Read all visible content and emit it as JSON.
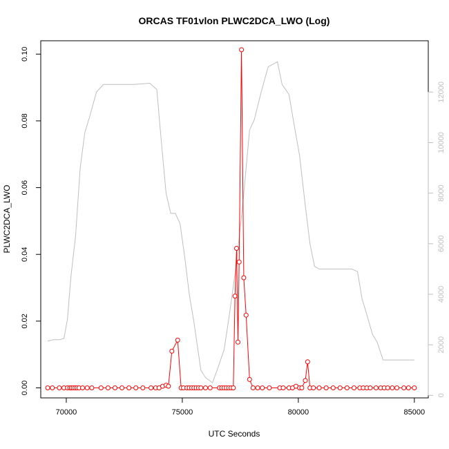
{
  "chart_data": {
    "type": "line",
    "title": "ORCAS TF01vlon PLWC2DCA_LWO (Log)",
    "xlabel": "UTC Seconds",
    "ylabel": "PLWC2DCA_LWO",
    "xlim": [
      68900,
      85600
    ],
    "ylim": [
      -0.003,
      0.104
    ],
    "y2lim": [
      -100,
      14030
    ],
    "x_ticks": [
      70000,
      75000,
      80000,
      85000
    ],
    "y_ticks": [
      0.0,
      0.02,
      0.04,
      0.06,
      0.08,
      0.1
    ],
    "y_tick_labels": [
      "0.00",
      "0.02",
      "0.04",
      "0.06",
      "0.08",
      "0.10"
    ],
    "y2_ticks": [
      0,
      2000,
      4000,
      6000,
      8000,
      10000,
      12000
    ],
    "grid": false,
    "legend": "none",
    "series": [
      {
        "color": "#ff0000",
        "axis": "left",
        "style": "line-with-points",
        "points": [
          [
            69200,
            0.0
          ],
          [
            69400,
            0.0
          ],
          [
            69700,
            0.0
          ],
          [
            69900,
            0.0
          ],
          [
            70050,
            0.0
          ],
          [
            70150,
            0.0
          ],
          [
            70220,
            0.0
          ],
          [
            70300,
            0.0
          ],
          [
            70380,
            0.0
          ],
          [
            70460,
            0.0
          ],
          [
            70550,
            0.0
          ],
          [
            70700,
            0.0
          ],
          [
            70900,
            0.0
          ],
          [
            71100,
            0.0
          ],
          [
            71500,
            0.0
          ],
          [
            71800,
            0.0
          ],
          [
            72100,
            0.0
          ],
          [
            72400,
            0.0
          ],
          [
            72700,
            0.0
          ],
          [
            73000,
            0.0
          ],
          [
            73300,
            0.0
          ],
          [
            73650,
            0.0
          ],
          [
            73850,
            0.0
          ],
          [
            74000,
            0.0
          ],
          [
            74150,
            0.0005
          ],
          [
            74300,
            0.0008
          ],
          [
            74400,
            0.0005
          ],
          [
            74550,
            0.011
          ],
          [
            74800,
            0.0143
          ],
          [
            74950,
            0.0
          ],
          [
            75050,
            0.0
          ],
          [
            75200,
            0.0
          ],
          [
            75300,
            0.0
          ],
          [
            75400,
            0.0
          ],
          [
            75500,
            0.0
          ],
          [
            75600,
            0.0
          ],
          [
            75700,
            0.0
          ],
          [
            75800,
            0.0
          ],
          [
            76000,
            0.0
          ],
          [
            76200,
            0.0
          ],
          [
            76600,
            0.0
          ],
          [
            76700,
            0.0
          ],
          [
            76800,
            0.0
          ],
          [
            76900,
            0.0
          ],
          [
            77000,
            0.0
          ],
          [
            77100,
            0.0
          ],
          [
            77200,
            0.0
          ],
          [
            77270,
            0.0275
          ],
          [
            77340,
            0.0418
          ],
          [
            77400,
            0.0137
          ],
          [
            77450,
            0.0377
          ],
          [
            77550,
            0.1013
          ],
          [
            77650,
            0.033
          ],
          [
            77750,
            0.0218
          ],
          [
            77900,
            0.0025
          ],
          [
            78050,
            0.0
          ],
          [
            78250,
            0.0
          ],
          [
            78450,
            0.0
          ],
          [
            78750,
            0.0
          ],
          [
            79200,
            0.0
          ],
          [
            79350,
            0.0
          ],
          [
            79600,
            0.0
          ],
          [
            79750,
            0.0
          ],
          [
            79900,
            0.0005
          ],
          [
            80050,
            0.0
          ],
          [
            80150,
            0.0
          ],
          [
            80300,
            0.0022
          ],
          [
            80400,
            0.0078
          ],
          [
            80500,
            0.0
          ],
          [
            80650,
            0.0
          ],
          [
            80900,
            0.0
          ],
          [
            81200,
            0.0
          ],
          [
            81500,
            0.0
          ],
          [
            81800,
            0.0
          ],
          [
            82100,
            0.0
          ],
          [
            82400,
            0.0
          ],
          [
            82650,
            0.0
          ],
          [
            82800,
            0.0
          ],
          [
            82950,
            0.0
          ],
          [
            83100,
            0.0
          ],
          [
            83350,
            0.0
          ],
          [
            83550,
            0.0
          ],
          [
            83700,
            0.0
          ],
          [
            83850,
            0.0
          ],
          [
            84050,
            0.0
          ],
          [
            84250,
            0.0
          ],
          [
            84550,
            0.0
          ],
          [
            84750,
            0.0
          ],
          [
            85000,
            0.0
          ]
        ]
      },
      {
        "color": "#bebebe",
        "axis": "right",
        "style": "line",
        "points": [
          [
            69200,
            2150
          ],
          [
            69450,
            2200
          ],
          [
            69700,
            2200
          ],
          [
            69900,
            2250
          ],
          [
            70050,
            3000
          ],
          [
            70200,
            4700
          ],
          [
            70400,
            6300
          ],
          [
            70600,
            9000
          ],
          [
            70800,
            10400
          ],
          [
            71000,
            11000
          ],
          [
            71300,
            12000
          ],
          [
            71600,
            12300
          ],
          [
            72200,
            12300
          ],
          [
            72900,
            12300
          ],
          [
            73600,
            12350
          ],
          [
            73900,
            12100
          ],
          [
            74100,
            10000
          ],
          [
            74300,
            8000
          ],
          [
            74500,
            7200
          ],
          [
            74700,
            7200
          ],
          [
            74900,
            6800
          ],
          [
            75100,
            5500
          ],
          [
            75300,
            4000
          ],
          [
            75500,
            2900
          ],
          [
            75800,
            1000
          ],
          [
            76000,
            700
          ],
          [
            76300,
            500
          ],
          [
            76500,
            1000
          ],
          [
            76800,
            1800
          ],
          [
            77000,
            3000
          ],
          [
            77300,
            5000
          ],
          [
            77600,
            7500
          ],
          [
            77900,
            10500
          ],
          [
            78100,
            10900
          ],
          [
            78400,
            12000
          ],
          [
            78700,
            13000
          ],
          [
            79100,
            13200
          ],
          [
            79300,
            12300
          ],
          [
            79600,
            11900
          ],
          [
            79800,
            10800
          ],
          [
            80050,
            9500
          ],
          [
            80300,
            7500
          ],
          [
            80500,
            6000
          ],
          [
            80700,
            5100
          ],
          [
            80900,
            5000
          ],
          [
            81300,
            5000
          ],
          [
            81900,
            5000
          ],
          [
            82300,
            5000
          ],
          [
            82550,
            4900
          ],
          [
            82750,
            3800
          ],
          [
            82950,
            3200
          ],
          [
            83200,
            2400
          ],
          [
            83400,
            2100
          ],
          [
            83650,
            1400
          ],
          [
            84000,
            1400
          ],
          [
            84500,
            1400
          ],
          [
            85000,
            1400
          ]
        ]
      }
    ]
  }
}
